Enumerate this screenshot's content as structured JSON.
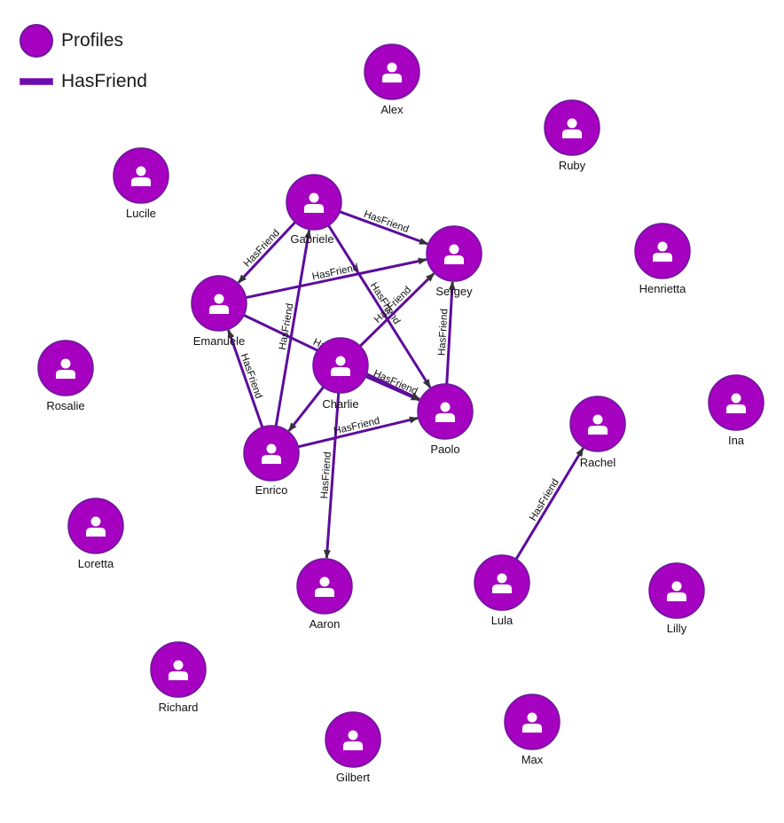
{
  "legend": {
    "node_label": "Profiles",
    "edge_label": "HasFriend"
  },
  "colors": {
    "node_fill": "#a600c0",
    "node_stroke": "#6a1a9a",
    "edge": "#5c0c9c",
    "arrow": "#333333"
  },
  "nodes": [
    {
      "id": "Alex",
      "label": "Alex"
    },
    {
      "id": "Ruby",
      "label": "Ruby"
    },
    {
      "id": "Lucile",
      "label": "Lucile"
    },
    {
      "id": "Gabriele",
      "label": "Gabriele"
    },
    {
      "id": "Sergey",
      "label": "Sergey"
    },
    {
      "id": "Henrietta",
      "label": "Henrietta"
    },
    {
      "id": "Emanuele",
      "label": "Emanuele"
    },
    {
      "id": "Charlie",
      "label": "Charlie"
    },
    {
      "id": "Rosalie",
      "label": "Rosalie"
    },
    {
      "id": "Ina",
      "label": "Ina"
    },
    {
      "id": "Paolo",
      "label": "Paolo"
    },
    {
      "id": "Rachel",
      "label": "Rachel"
    },
    {
      "id": "Enrico",
      "label": "Enrico"
    },
    {
      "id": "Loretta",
      "label": "Loretta"
    },
    {
      "id": "Aaron",
      "label": "Aaron"
    },
    {
      "id": "Lula",
      "label": "Lula"
    },
    {
      "id": "Lilly",
      "label": "Lilly"
    },
    {
      "id": "Richard",
      "label": "Richard"
    },
    {
      "id": "Gilbert",
      "label": "Gilbert"
    },
    {
      "id": "Max",
      "label": "Max"
    }
  ],
  "edges": [
    {
      "from": "Gabriele",
      "to": "Sergey",
      "label": "HasFriend"
    },
    {
      "from": "Gabriele",
      "to": "Emanuele",
      "label": "HasFriend"
    },
    {
      "from": "Gabriele",
      "to": "Paolo",
      "label": "HasFriend"
    },
    {
      "from": "Emanuele",
      "to": "Sergey",
      "label": "HasFriend"
    },
    {
      "from": "Emanuele",
      "to": "Paolo",
      "label": "HasFriend"
    },
    {
      "from": "Charlie",
      "to": "Sergey",
      "label": "HasFriend"
    },
    {
      "from": "Charlie",
      "to": "Paolo",
      "label": "HasFriend"
    },
    {
      "from": "Charlie",
      "to": "Aaron",
      "label": "HasFriend"
    },
    {
      "from": "Charlie",
      "to": "Enrico",
      "label": ""
    },
    {
      "from": "Enrico",
      "to": "Gabriele",
      "label": "HasFriend"
    },
    {
      "from": "Enrico",
      "to": "Emanuele",
      "label": "HasFriend"
    },
    {
      "from": "Enrico",
      "to": "Paolo",
      "label": "HasFriend"
    },
    {
      "from": "Paolo",
      "to": "Sergey",
      "label": "HasFriend"
    },
    {
      "from": "Lula",
      "to": "Rachel",
      "label": "HasFriend"
    }
  ]
}
